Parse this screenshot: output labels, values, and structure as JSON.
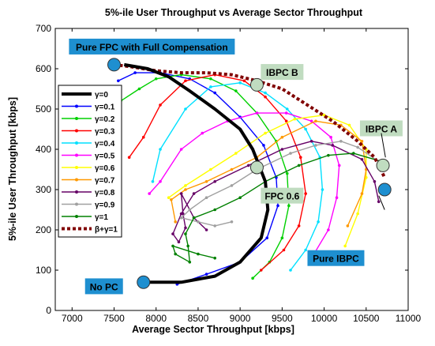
{
  "chart_data": {
    "type": "line",
    "title": "5%-ile User Throughput vs Average Sector Throughput",
    "xlabel": "Average Sector Throughput [kbps]",
    "ylabel": "5%-ile User Throughput [kbps]",
    "xlim": [
      6800,
      11000
    ],
    "ylim": [
      0,
      700
    ],
    "xticks": [
      7000,
      7500,
      8000,
      8500,
      9000,
      9500,
      10000,
      10500,
      11000
    ],
    "yticks": [
      0,
      100,
      200,
      300,
      400,
      500,
      600,
      700
    ],
    "grid": false,
    "legend_position": "left",
    "series": [
      {
        "name": "γ=0",
        "color": "#000000",
        "style": "thick",
        "points": [
          [
            7870,
            70
          ],
          [
            8300,
            70
          ],
          [
            8700,
            85
          ],
          [
            9000,
            120
          ],
          [
            9250,
            180
          ],
          [
            9330,
            250
          ],
          [
            9300,
            320
          ],
          [
            9150,
            400
          ],
          [
            9000,
            450
          ],
          [
            8700,
            500
          ],
          [
            8400,
            545
          ],
          [
            8150,
            580
          ],
          [
            7900,
            600
          ],
          [
            7620,
            610
          ]
        ]
      },
      {
        "name": "γ=0.1",
        "color": "#0000ff",
        "style": "dot",
        "points": [
          [
            8250,
            65
          ],
          [
            8600,
            90
          ],
          [
            9000,
            120
          ],
          [
            9320,
            180
          ],
          [
            9450,
            260
          ],
          [
            9430,
            330
          ],
          [
            9280,
            410
          ],
          [
            9000,
            480
          ],
          [
            8700,
            540
          ],
          [
            8400,
            575
          ],
          [
            8050,
            590
          ],
          [
            7750,
            590
          ],
          [
            7550,
            570
          ]
        ]
      },
      {
        "name": "γ=0.2",
        "color": "#00d000",
        "style": "dot",
        "points": [
          [
            9150,
            80
          ],
          [
            9350,
            120
          ],
          [
            9500,
            180
          ],
          [
            9580,
            260
          ],
          [
            9560,
            340
          ],
          [
            9430,
            420
          ],
          [
            9200,
            490
          ],
          [
            8950,
            545
          ],
          [
            8650,
            575
          ],
          [
            8300,
            585
          ],
          [
            8000,
            575
          ],
          [
            7800,
            550
          ],
          [
            7580,
            520
          ]
        ]
      },
      {
        "name": "γ=0.3",
        "color": "#ff0000",
        "style": "dot",
        "points": [
          [
            9250,
            100
          ],
          [
            9520,
            150
          ],
          [
            9700,
            210
          ],
          [
            9780,
            290
          ],
          [
            9720,
            380
          ],
          [
            9550,
            470
          ],
          [
            9300,
            530
          ],
          [
            9050,
            570
          ],
          [
            8700,
            585
          ],
          [
            8350,
            570
          ],
          [
            8050,
            510
          ],
          [
            7850,
            430
          ],
          [
            7680,
            380
          ]
        ]
      },
      {
        "name": "γ=0.4",
        "color": "#00e0ff",
        "style": "dot",
        "points": [
          [
            9600,
            100
          ],
          [
            9780,
            150
          ],
          [
            9930,
            220
          ],
          [
            9980,
            300
          ],
          [
            9950,
            380
          ],
          [
            9780,
            450
          ],
          [
            9560,
            500
          ],
          [
            9300,
            540
          ],
          [
            9000,
            565
          ],
          [
            8650,
            555
          ],
          [
            8350,
            500
          ],
          [
            8050,
            400
          ],
          [
            7960,
            320
          ]
        ]
      },
      {
        "name": "γ=0.5",
        "color": "#ff00ff",
        "style": "dot",
        "points": [
          [
            9850,
            130
          ],
          [
            10050,
            200
          ],
          [
            10150,
            280
          ],
          [
            10180,
            360
          ],
          [
            10080,
            430
          ],
          [
            9850,
            470
          ],
          [
            9550,
            490
          ],
          [
            9200,
            490
          ],
          [
            8850,
            470
          ],
          [
            8550,
            440
          ],
          [
            8300,
            400
          ],
          [
            8050,
            320
          ],
          [
            7920,
            290
          ]
        ]
      },
      {
        "name": "γ=0.6",
        "color": "#ffff00",
        "style": "dot",
        "points": [
          [
            10250,
            160
          ],
          [
            10400,
            240
          ],
          [
            10500,
            330
          ],
          [
            10500,
            400
          ],
          [
            10300,
            460
          ],
          [
            10000,
            485
          ],
          [
            9650,
            475
          ],
          [
            9300,
            440
          ],
          [
            8950,
            390
          ],
          [
            8650,
            350
          ],
          [
            8350,
            310
          ],
          [
            8150,
            280
          ]
        ]
      },
      {
        "name": "γ=0.7",
        "color": "#ff9900",
        "style": "dot",
        "points": [
          [
            10280,
            210
          ],
          [
            10450,
            290
          ],
          [
            10500,
            350
          ],
          [
            10450,
            420
          ],
          [
            10200,
            460
          ],
          [
            9900,
            470
          ],
          [
            9500,
            430
          ],
          [
            9200,
            380
          ],
          [
            8900,
            350
          ],
          [
            8600,
            320
          ],
          [
            8350,
            300
          ],
          [
            8180,
            275
          ],
          [
            8230,
            220
          ]
        ]
      },
      {
        "name": "γ=0.8",
        "color": "#660066",
        "style": "dot",
        "points": [
          [
            10650,
            270
          ],
          [
            10600,
            320
          ],
          [
            10450,
            375
          ],
          [
            10100,
            410
          ],
          [
            9850,
            420
          ],
          [
            9500,
            400
          ],
          [
            9100,
            360
          ],
          [
            8700,
            320
          ],
          [
            8450,
            290
          ],
          [
            8300,
            240
          ],
          [
            8200,
            190
          ],
          [
            8270,
            170
          ],
          [
            8350,
            205
          ],
          [
            8320,
            240
          ],
          [
            8300,
            290
          ],
          [
            8450,
            230
          ],
          [
            8600,
            200
          ]
        ]
      },
      {
        "name": "γ=0.9",
        "color": "#a0a0a0",
        "style": "dot",
        "points": [
          [
            10720,
            360
          ],
          [
            10400,
            405
          ],
          [
            10200,
            420
          ],
          [
            9900,
            410
          ],
          [
            9600,
            390
          ],
          [
            9200,
            350
          ],
          [
            8900,
            310
          ],
          [
            8600,
            280
          ],
          [
            8400,
            250
          ],
          [
            8300,
            230
          ],
          [
            8500,
            220
          ],
          [
            8700,
            210
          ],
          [
            8900,
            220
          ]
        ]
      },
      {
        "name": "γ=1",
        "color": "#008000",
        "style": "dot",
        "points": [
          [
            10680,
            370
          ],
          [
            10350,
            390
          ],
          [
            10050,
            385
          ],
          [
            9700,
            360
          ],
          [
            9300,
            320
          ],
          [
            9000,
            280
          ],
          [
            8700,
            250
          ],
          [
            8450,
            230
          ],
          [
            8350,
            190
          ],
          [
            8380,
            160
          ],
          [
            8400,
            120
          ],
          [
            8230,
            140
          ],
          [
            8200,
            160
          ],
          [
            8500,
            140
          ],
          [
            8700,
            130
          ]
        ]
      },
      {
        "name": "β+γ=1",
        "color": "#800000",
        "style": "dashed",
        "points": [
          [
            7500,
            610
          ],
          [
            7700,
            605
          ],
          [
            8000,
            595
          ],
          [
            8300,
            590
          ],
          [
            8600,
            590
          ],
          [
            8900,
            585
          ],
          [
            9200,
            570
          ],
          [
            9500,
            550
          ],
          [
            9800,
            510
          ],
          [
            10100,
            470
          ],
          [
            10400,
            420
          ],
          [
            10600,
            380
          ],
          [
            10720,
            330
          ]
        ]
      }
    ],
    "markers": [
      {
        "name": "Pure FPC with Full Compensation",
        "point": [
          7500,
          610
        ]
      },
      {
        "name": "IBPC B",
        "point": [
          9200,
          560
        ]
      },
      {
        "name": "IBPC A",
        "point": [
          10700,
          360
        ]
      },
      {
        "name": "Pure IBPC",
        "point": [
          10720,
          300
        ]
      },
      {
        "name": "FPC 0.6",
        "point": [
          9200,
          355
        ]
      },
      {
        "name": "No PC",
        "point": [
          7850,
          70
        ]
      }
    ],
    "annotations": [
      {
        "text": "Pure FPC with Full Compensation",
        "point": [
          7950,
          655
        ]
      },
      {
        "text": "IBPC B",
        "point": [
          9500,
          592
        ]
      },
      {
        "text": "IBPC A",
        "point": [
          10680,
          452
        ]
      },
      {
        "text": "FPC 0.6",
        "point": [
          9500,
          285
        ]
      },
      {
        "text": "Pure IBPC",
        "point": [
          10140,
          130
        ]
      },
      {
        "text": "No PC",
        "point": [
          7380,
          60
        ]
      }
    ]
  }
}
